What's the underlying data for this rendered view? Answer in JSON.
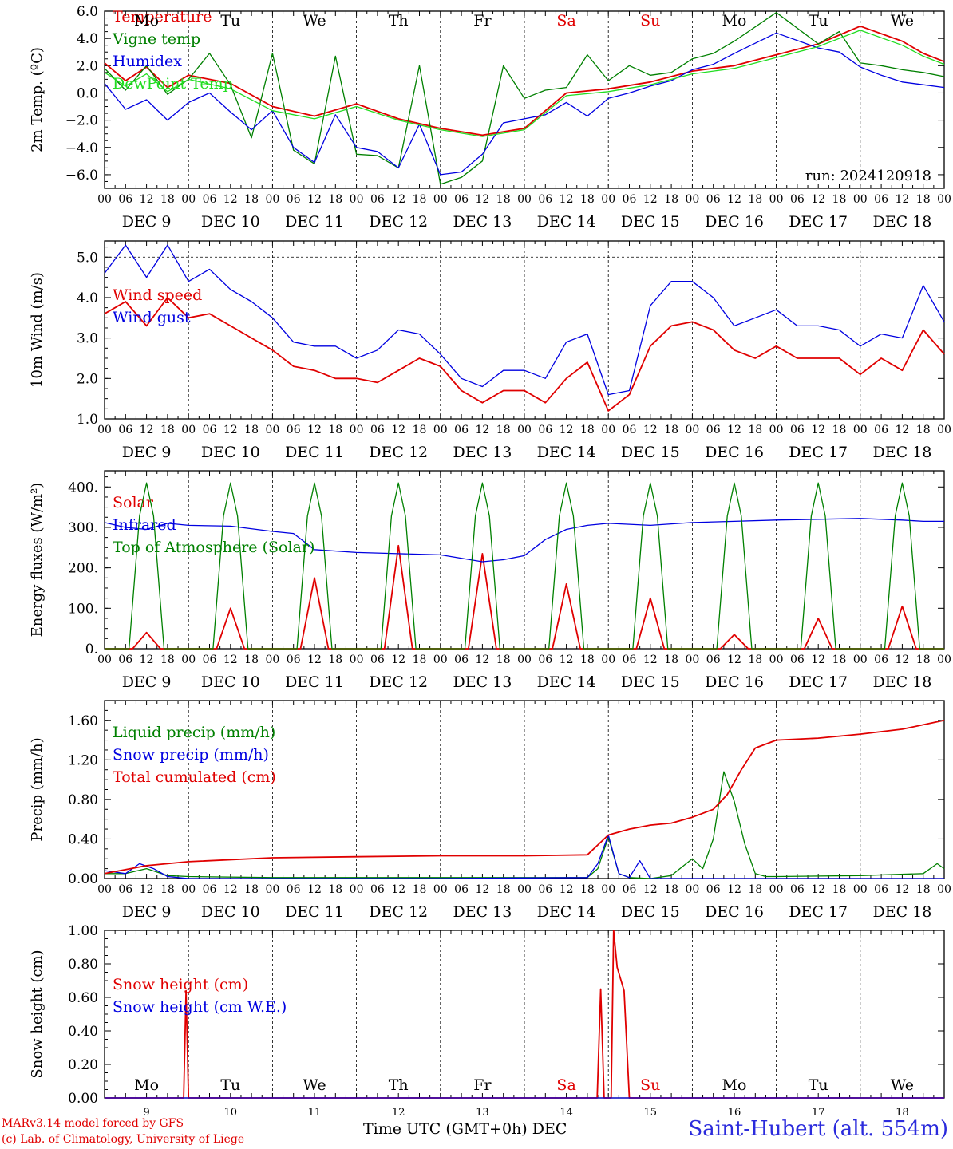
{
  "days": [
    "Mo",
    "Tu",
    "We",
    "Th",
    "Fr",
    "Sa",
    "Su",
    "Mo",
    "Tu",
    "We"
  ],
  "date_labels": [
    "DEC  9",
    "DEC 10",
    "DEC 11",
    "DEC 12",
    "DEC 13",
    "DEC 14",
    "DEC 15",
    "DEC 16",
    "DEC 17",
    "DEC 18"
  ],
  "day_numbers": [
    "9",
    "10",
    "11",
    "12",
    "13",
    "14",
    "15",
    "16",
    "17",
    "18"
  ],
  "hour_ticks": [
    "00",
    "06",
    "12",
    "18"
  ],
  "colors": {
    "red": "#e00000",
    "green": "#008000",
    "blue": "#0000e0",
    "lightgreen": "#22dd22",
    "weekend": "#e00000",
    "axis": "#000000"
  },
  "footer": {
    "model": "MARv3.14 model forced by GFS",
    "credit": "(c) Lab. of Climatology, University of Liege",
    "xlabel": "Time UTC (GMT+0h) DEC",
    "station": "Saint-Hubert (alt. 554m)"
  },
  "chart_data": [
    {
      "type": "line",
      "ylabel": "2m Temp. (ºC)",
      "ylim": [
        -7,
        6
      ],
      "yticks": [
        "6.0",
        "4.0",
        "2.0",
        "0.0",
        "−2.0",
        "−4.0",
        "−6.0"
      ],
      "ytick_values": [
        6,
        4,
        2,
        0,
        -2,
        -4,
        -6
      ],
      "zero_line": 0,
      "annotation": "run: 2024120918",
      "x_unit": "hours since DEC 9 00 UTC",
      "series": [
        {
          "name": "Temperature",
          "color": "red",
          "x": [
            0,
            6,
            12,
            18,
            24,
            36,
            48,
            60,
            72,
            84,
            96,
            108,
            120,
            132,
            144,
            156,
            168,
            180,
            192,
            204,
            216,
            228,
            234,
            240
          ],
          "y": [
            2.2,
            0.9,
            1.9,
            0.4,
            1.3,
            0.7,
            -1.0,
            -1.7,
            -0.8,
            -1.9,
            -2.6,
            -3.1,
            -2.6,
            0.0,
            0.3,
            0.8,
            1.6,
            2.0,
            2.8,
            3.6,
            4.9,
            3.8,
            2.9,
            2.3
          ]
        },
        {
          "name": "Vigne temp",
          "color": "green",
          "x": [
            0,
            6,
            12,
            18,
            24,
            30,
            36,
            42,
            48,
            54,
            60,
            66,
            72,
            78,
            84,
            90,
            96,
            102,
            108,
            114,
            120,
            126,
            132,
            138,
            144,
            150,
            156,
            162,
            168,
            174,
            180,
            192,
            204,
            210,
            216,
            222,
            228,
            234,
            240
          ],
          "y": [
            1.8,
            0.2,
            2.0,
            -0.1,
            1.0,
            2.9,
            0.6,
            -3.3,
            2.9,
            -4.2,
            -5.2,
            2.7,
            -4.5,
            -4.6,
            -5.5,
            2.0,
            -6.7,
            -6.2,
            -5.0,
            2.0,
            -0.4,
            0.2,
            0.4,
            2.8,
            0.9,
            2.0,
            1.3,
            1.5,
            2.5,
            2.9,
            3.8,
            5.9,
            3.6,
            4.5,
            2.2,
            2.0,
            1.7,
            1.5,
            1.2
          ]
        },
        {
          "name": "Humidex",
          "color": "blue",
          "x": [
            0,
            6,
            12,
            18,
            24,
            30,
            36,
            42,
            48,
            54,
            60,
            66,
            72,
            78,
            84,
            90,
            96,
            102,
            108,
            114,
            120,
            126,
            132,
            138,
            144,
            150,
            156,
            162,
            168,
            174,
            180,
            192,
            204,
            210,
            216,
            222,
            228,
            234,
            240
          ],
          "y": [
            0.7,
            -1.2,
            -0.5,
            -2.0,
            -0.7,
            0.0,
            -1.4,
            -2.7,
            -1.3,
            -4.0,
            -5.1,
            -1.6,
            -4.0,
            -4.3,
            -5.5,
            -2.3,
            -6.0,
            -5.8,
            -4.5,
            -2.2,
            -1.9,
            -1.6,
            -0.7,
            -1.7,
            -0.4,
            0.0,
            0.5,
            0.9,
            1.7,
            2.1,
            2.9,
            4.4,
            3.3,
            3.0,
            1.9,
            1.3,
            0.8,
            0.6,
            0.4
          ]
        },
        {
          "name": "DewPoint Temp",
          "color": "lightgreen",
          "x": [
            0,
            6,
            12,
            18,
            24,
            36,
            48,
            60,
            72,
            84,
            96,
            108,
            120,
            132,
            144,
            156,
            168,
            180,
            192,
            204,
            216,
            228,
            234,
            240
          ],
          "y": [
            1.5,
            0.5,
            1.4,
            0.1,
            1.0,
            0.3,
            -1.3,
            -1.9,
            -1.0,
            -2.0,
            -2.7,
            -3.2,
            -2.7,
            -0.2,
            0.1,
            0.6,
            1.4,
            1.8,
            2.6,
            3.4,
            4.6,
            3.5,
            2.7,
            2.1
          ]
        }
      ]
    },
    {
      "type": "line",
      "ylabel": "10m Wind (m/s)",
      "ylim": [
        1,
        5.4
      ],
      "yticks": [
        "5.0",
        "4.0",
        "3.0",
        "2.0",
        "1.0"
      ],
      "ytick_values": [
        5,
        4,
        3,
        2,
        1
      ],
      "dashed_line": 5,
      "x_unit": "hours since DEC 9 00 UTC",
      "series": [
        {
          "name": "Wind speed",
          "color": "red",
          "x": [
            0,
            6,
            12,
            18,
            24,
            30,
            36,
            42,
            48,
            54,
            60,
            66,
            72,
            78,
            84,
            90,
            96,
            102,
            108,
            114,
            120,
            126,
            132,
            138,
            144,
            150,
            156,
            162,
            168,
            174,
            180,
            186,
            192,
            198,
            204,
            210,
            216,
            222,
            228,
            234,
            240
          ],
          "y": [
            3.6,
            3.9,
            3.3,
            4.0,
            3.5,
            3.6,
            3.3,
            3.0,
            2.7,
            2.3,
            2.2,
            2.0,
            2.0,
            1.9,
            2.2,
            2.5,
            2.3,
            1.7,
            1.4,
            1.7,
            1.7,
            1.4,
            2.0,
            2.4,
            1.2,
            1.6,
            2.8,
            3.3,
            3.4,
            3.2,
            2.7,
            2.5,
            2.8,
            2.5,
            2.5,
            2.5,
            2.1,
            2.5,
            2.2,
            3.2,
            2.6
          ]
        },
        {
          "name": "Wind gust",
          "color": "blue",
          "x": [
            0,
            6,
            12,
            18,
            24,
            30,
            36,
            42,
            48,
            54,
            60,
            66,
            72,
            78,
            84,
            90,
            96,
            102,
            108,
            114,
            120,
            126,
            132,
            138,
            144,
            150,
            156,
            162,
            168,
            174,
            180,
            186,
            192,
            198,
            204,
            210,
            216,
            222,
            228,
            234,
            240
          ],
          "y": [
            4.6,
            5.3,
            4.5,
            5.3,
            4.4,
            4.7,
            4.2,
            3.9,
            3.5,
            2.9,
            2.8,
            2.8,
            2.5,
            2.7,
            3.2,
            3.1,
            2.6,
            2.0,
            1.8,
            2.2,
            2.2,
            2.0,
            2.9,
            3.1,
            1.6,
            1.7,
            3.8,
            4.4,
            4.4,
            4.0,
            3.3,
            3.5,
            3.7,
            3.3,
            3.3,
            3.2,
            2.8,
            3.1,
            3.0,
            4.3,
            3.4
          ]
        }
      ]
    },
    {
      "type": "line",
      "ylabel": "Energy fluxes (W/m²)",
      "ylim": [
        0,
        440
      ],
      "yticks": [
        "400.",
        "300.",
        "200.",
        "100.",
        "0."
      ],
      "ytick_values": [
        400,
        300,
        200,
        100,
        0
      ],
      "x_unit": "hours since DEC 9 00 UTC",
      "series": [
        {
          "name": "Solar",
          "color": "red",
          "solar_peaks": [
            40,
            100,
            175,
            255,
            235,
            160,
            125,
            35,
            75,
            105
          ]
        },
        {
          "name": "Infrared",
          "color": "blue",
          "x": [
            0,
            6,
            12,
            18,
            24,
            36,
            48,
            54,
            60,
            72,
            84,
            96,
            108,
            114,
            120,
            126,
            132,
            138,
            144,
            156,
            168,
            180,
            192,
            204,
            216,
            228,
            234,
            240
          ],
          "y": [
            312,
            300,
            295,
            310,
            305,
            303,
            290,
            285,
            245,
            238,
            235,
            232,
            215,
            220,
            230,
            270,
            295,
            305,
            310,
            305,
            312,
            315,
            318,
            320,
            322,
            318,
            315,
            315
          ]
        },
        {
          "name": "Top of Atmosphere (Solar)",
          "color": "green",
          "peak": 410
        }
      ]
    },
    {
      "type": "line",
      "ylabel": "Precip (mm/h)",
      "ylim": [
        0,
        1.8
      ],
      "yticks": [
        "1.60",
        "1.20",
        "0.80",
        "0.40",
        "0.00"
      ],
      "ytick_values": [
        1.6,
        1.2,
        0.8,
        0.4,
        0
      ],
      "x_unit": "hours since DEC 9 00 UTC",
      "series": [
        {
          "name": "Liquid precip (mm/h)",
          "color": "green",
          "x": [
            0,
            6,
            12,
            18,
            24,
            48,
            96,
            138,
            141,
            144,
            147,
            150,
            156,
            162,
            168,
            171,
            174,
            177,
            180,
            183,
            186,
            189,
            192,
            216,
            234,
            238,
            240
          ],
          "y": [
            0.05,
            0.05,
            0.1,
            0.03,
            0.02,
            0.01,
            0.01,
            0.01,
            0.1,
            0.42,
            0.05,
            0.01,
            0.0,
            0.03,
            0.2,
            0.1,
            0.4,
            1.08,
            0.78,
            0.35,
            0.05,
            0.02,
            0.02,
            0.03,
            0.05,
            0.15,
            0.1
          ]
        },
        {
          "name": "Snow precip (mm/h)",
          "color": "blue",
          "x": [
            0,
            6,
            10,
            14,
            18,
            24,
            48,
            96,
            138,
            141,
            144,
            147,
            150,
            153,
            156,
            162,
            168,
            240
          ],
          "y": [
            0.08,
            0.05,
            0.15,
            0.1,
            0.02,
            0.0,
            0.0,
            0.0,
            0.01,
            0.15,
            0.44,
            0.05,
            0.01,
            0.18,
            0.0,
            0.0,
            0.0,
            0.0
          ]
        },
        {
          "name": "Total cumulated (cm)",
          "color": "red",
          "x": [
            0,
            12,
            24,
            48,
            72,
            96,
            120,
            138,
            144,
            150,
            156,
            162,
            168,
            174,
            178,
            182,
            186,
            192,
            204,
            216,
            228,
            240
          ],
          "y": [
            0.05,
            0.13,
            0.17,
            0.21,
            0.22,
            0.23,
            0.23,
            0.24,
            0.44,
            0.5,
            0.54,
            0.56,
            0.62,
            0.7,
            0.85,
            1.1,
            1.32,
            1.4,
            1.42,
            1.46,
            1.51,
            1.6
          ]
        }
      ]
    },
    {
      "type": "line",
      "ylabel": "Snow height (cm)",
      "ylim": [
        0,
        1.0
      ],
      "yticks": [
        "1.00",
        "0.80",
        "0.60",
        "0.40",
        "0.20",
        "0.00"
      ],
      "ytick_values": [
        1,
        0.8,
        0.6,
        0.4,
        0.2,
        0
      ],
      "x_unit": "hours since DEC 9 00 UTC",
      "series": [
        {
          "name": "Snow height (cm)",
          "color": "red",
          "x": [
            0,
            22.6,
            23.3,
            24.0,
            140.8,
            141.8,
            142.8,
            144.8,
            145.5,
            146.5,
            148.5,
            150.0,
            240
          ],
          "y": [
            0,
            0,
            0.64,
            0,
            0,
            0.65,
            0,
            0,
            1.0,
            0.78,
            0.64,
            0,
            0
          ]
        },
        {
          "name": "Snow height (cm W.E.)",
          "color": "blue",
          "x": [
            0,
            240
          ],
          "y": [
            0,
            0
          ]
        }
      ]
    }
  ]
}
